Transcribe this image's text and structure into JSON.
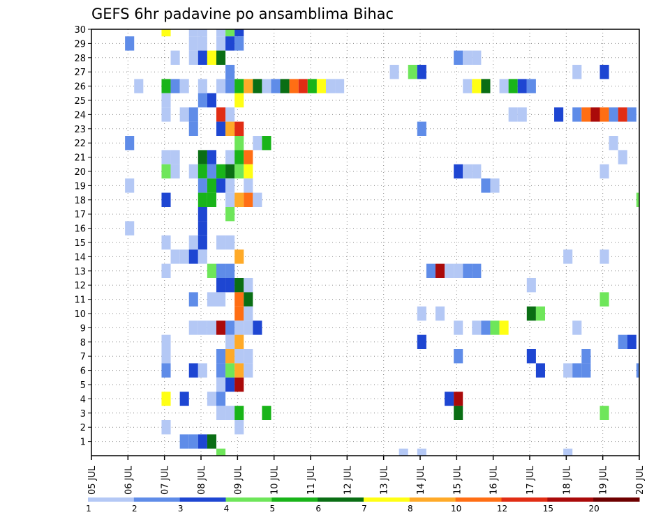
{
  "chart_data": {
    "type": "heatmap",
    "title": "GEFS 6hr padavine po ansamblima Bihac",
    "xlabel": "",
    "ylabel": "",
    "x_tick_labels": [
      "05 JUL",
      "06 JUL",
      "07 JUL",
      "08 JUL",
      "09 JUL",
      "10 JUL",
      "11 JUL",
      "12 JUL",
      "13 JUL",
      "14 JUL",
      "15 JUL",
      "16 JUL",
      "17 JUL",
      "18 JUL",
      "19 JUL",
      "20 JUL"
    ],
    "x_range_days": [
      0,
      15
    ],
    "x_step_days": 0.25,
    "y_tick_labels": [
      "1",
      "2",
      "3",
      "4",
      "5",
      "6",
      "7",
      "8",
      "9",
      "10",
      "11",
      "12",
      "13",
      "14",
      "15",
      "16",
      "17",
      "18",
      "19",
      "20",
      "21",
      "22",
      "23",
      "24",
      "25",
      "26",
      "27",
      "28",
      "29",
      "30"
    ],
    "ylim": [
      0,
      30
    ],
    "grid": true,
    "colorbar": {
      "labels": [
        "1",
        "2",
        "3",
        "4",
        "5",
        "6",
        "7",
        "8",
        "10",
        "12",
        "15",
        "20"
      ],
      "colors": [
        "#b4c8f5",
        "#5f8ce8",
        "#1e46d2",
        "#6ee65a",
        "#19b419",
        "#0a6e14",
        "#ffff14",
        "#ffaa28",
        "#ff6e14",
        "#e12d14",
        "#aa0a0a",
        "#6e0000"
      ]
    },
    "cells_note": "each cell: [day offset from 05 JUL (0.25 = 6 h), ensemble member, colour class index 0-11]",
    "cells": [
      [
        1.92,
        30,
        6
      ],
      [
        2.67,
        30,
        0
      ],
      [
        2.92,
        30,
        0
      ],
      [
        3.42,
        30,
        0
      ],
      [
        3.67,
        30,
        3
      ],
      [
        3.92,
        30,
        2
      ],
      [
        0.92,
        29,
        1
      ],
      [
        2.67,
        29,
        0
      ],
      [
        2.92,
        29,
        0
      ],
      [
        3.42,
        29,
        0
      ],
      [
        3.67,
        29,
        2
      ],
      [
        3.92,
        29,
        1
      ],
      [
        2.17,
        28,
        0
      ],
      [
        2.67,
        28,
        0
      ],
      [
        2.92,
        28,
        2
      ],
      [
        3.17,
        28,
        6
      ],
      [
        3.42,
        28,
        5
      ],
      [
        9.92,
        28,
        1
      ],
      [
        10.17,
        28,
        0
      ],
      [
        10.42,
        28,
        0
      ],
      [
        3.67,
        27,
        1
      ],
      [
        8.17,
        27,
        0
      ],
      [
        8.67,
        27,
        3
      ],
      [
        8.92,
        27,
        2
      ],
      [
        13.17,
        27,
        0
      ],
      [
        13.92,
        27,
        2
      ],
      [
        1.17,
        26,
        0
      ],
      [
        1.92,
        26,
        4
      ],
      [
        2.17,
        26,
        1
      ],
      [
        2.42,
        26,
        0
      ],
      [
        2.92,
        26,
        0
      ],
      [
        3.42,
        26,
        0
      ],
      [
        3.67,
        26,
        1
      ],
      [
        3.92,
        26,
        4
      ],
      [
        4.17,
        26,
        7
      ],
      [
        4.42,
        26,
        5
      ],
      [
        4.67,
        26,
        0
      ],
      [
        4.92,
        26,
        1
      ],
      [
        5.17,
        26,
        5
      ],
      [
        5.42,
        26,
        8
      ],
      [
        5.67,
        26,
        9
      ],
      [
        5.92,
        26,
        4
      ],
      [
        6.17,
        26,
        6
      ],
      [
        6.42,
        26,
        0
      ],
      [
        6.67,
        26,
        0
      ],
      [
        10.17,
        26,
        0
      ],
      [
        10.42,
        26,
        6
      ],
      [
        10.67,
        26,
        5
      ],
      [
        11.17,
        26,
        0
      ],
      [
        11.42,
        26,
        4
      ],
      [
        11.67,
        26,
        2
      ],
      [
        11.92,
        26,
        1
      ],
      [
        1.92,
        25,
        0
      ],
      [
        2.92,
        25,
        1
      ],
      [
        3.17,
        25,
        2
      ],
      [
        3.92,
        25,
        6
      ],
      [
        1.92,
        24,
        0
      ],
      [
        2.42,
        24,
        0
      ],
      [
        2.67,
        24,
        1
      ],
      [
        3.42,
        24,
        9
      ],
      [
        3.67,
        24,
        0
      ],
      [
        11.42,
        24,
        0
      ],
      [
        11.67,
        24,
        0
      ],
      [
        12.67,
        24,
        2
      ],
      [
        13.17,
        24,
        1
      ],
      [
        13.42,
        24,
        8
      ],
      [
        13.67,
        24,
        10
      ],
      [
        13.92,
        24,
        8
      ],
      [
        14.17,
        24,
        1
      ],
      [
        14.42,
        24,
        9
      ],
      [
        14.67,
        24,
        1
      ],
      [
        2.67,
        23,
        1
      ],
      [
        3.42,
        23,
        2
      ],
      [
        3.67,
        23,
        7
      ],
      [
        3.92,
        23,
        9
      ],
      [
        8.92,
        23,
        1
      ],
      [
        0.92,
        22,
        1
      ],
      [
        3.92,
        22,
        3
      ],
      [
        4.42,
        22,
        0
      ],
      [
        4.67,
        22,
        4
      ],
      [
        14.17,
        22,
        0
      ],
      [
        1.92,
        21,
        0
      ],
      [
        2.17,
        21,
        0
      ],
      [
        2.92,
        21,
        5
      ],
      [
        3.17,
        21,
        2
      ],
      [
        3.67,
        21,
        0
      ],
      [
        3.92,
        21,
        4
      ],
      [
        4.17,
        21,
        8
      ],
      [
        14.42,
        21,
        0
      ],
      [
        1.92,
        20,
        3
      ],
      [
        2.17,
        20,
        0
      ],
      [
        2.67,
        20,
        0
      ],
      [
        2.92,
        20,
        4
      ],
      [
        3.17,
        20,
        1
      ],
      [
        3.42,
        20,
        4
      ],
      [
        3.67,
        20,
        5
      ],
      [
        3.92,
        20,
        3
      ],
      [
        4.17,
        20,
        6
      ],
      [
        9.92,
        20,
        2
      ],
      [
        10.17,
        20,
        0
      ],
      [
        10.42,
        20,
        0
      ],
      [
        13.92,
        20,
        0
      ],
      [
        0.92,
        19,
        0
      ],
      [
        2.92,
        19,
        1
      ],
      [
        3.17,
        19,
        4
      ],
      [
        3.42,
        19,
        2
      ],
      [
        3.67,
        19,
        0
      ],
      [
        4.17,
        19,
        0
      ],
      [
        10.67,
        19,
        1
      ],
      [
        10.92,
        19,
        0
      ],
      [
        1.92,
        18,
        2
      ],
      [
        2.92,
        18,
        4
      ],
      [
        3.17,
        18,
        4
      ],
      [
        3.67,
        18,
        0
      ],
      [
        3.92,
        18,
        7
      ],
      [
        4.17,
        18,
        8
      ],
      [
        4.42,
        18,
        0
      ],
      [
        14.92,
        18,
        3
      ],
      [
        2.92,
        17,
        2
      ],
      [
        3.67,
        17,
        3
      ],
      [
        0.92,
        16,
        0
      ],
      [
        2.92,
        16,
        2
      ],
      [
        1.92,
        15,
        0
      ],
      [
        2.67,
        15,
        0
      ],
      [
        2.92,
        15,
        2
      ],
      [
        3.42,
        15,
        0
      ],
      [
        3.67,
        15,
        0
      ],
      [
        2.17,
        14,
        0
      ],
      [
        2.42,
        14,
        0
      ],
      [
        2.67,
        14,
        2
      ],
      [
        2.92,
        14,
        0
      ],
      [
        3.92,
        14,
        7
      ],
      [
        12.92,
        14,
        0
      ],
      [
        13.92,
        14,
        0
      ],
      [
        1.92,
        13,
        0
      ],
      [
        3.17,
        13,
        3
      ],
      [
        3.42,
        13,
        1
      ],
      [
        3.67,
        13,
        1
      ],
      [
        9.17,
        13,
        1
      ],
      [
        9.42,
        13,
        10
      ],
      [
        9.67,
        13,
        0
      ],
      [
        9.92,
        13,
        0
      ],
      [
        10.17,
        13,
        1
      ],
      [
        10.42,
        13,
        1
      ],
      [
        3.42,
        12,
        2
      ],
      [
        3.67,
        12,
        2
      ],
      [
        3.92,
        12,
        5
      ],
      [
        4.17,
        12,
        0
      ],
      [
        11.92,
        12,
        0
      ],
      [
        2.67,
        11,
        1
      ],
      [
        3.17,
        11,
        0
      ],
      [
        3.42,
        11,
        0
      ],
      [
        3.92,
        11,
        8
      ],
      [
        4.17,
        11,
        5
      ],
      [
        13.92,
        11,
        3
      ],
      [
        3.92,
        10,
        8
      ],
      [
        4.17,
        10,
        0
      ],
      [
        8.92,
        10,
        0
      ],
      [
        9.42,
        10,
        0
      ],
      [
        11.92,
        10,
        5
      ],
      [
        12.17,
        10,
        3
      ],
      [
        2.67,
        9,
        0
      ],
      [
        2.92,
        9,
        0
      ],
      [
        3.17,
        9,
        0
      ],
      [
        3.42,
        9,
        10
      ],
      [
        3.67,
        9,
        1
      ],
      [
        3.92,
        9,
        0
      ],
      [
        4.17,
        9,
        0
      ],
      [
        4.42,
        9,
        2
      ],
      [
        9.92,
        9,
        0
      ],
      [
        10.42,
        9,
        0
      ],
      [
        10.67,
        9,
        1
      ],
      [
        10.92,
        9,
        3
      ],
      [
        11.17,
        9,
        6
      ],
      [
        13.17,
        9,
        0
      ],
      [
        1.92,
        8,
        0
      ],
      [
        3.67,
        8,
        0
      ],
      [
        3.92,
        8,
        7
      ],
      [
        8.92,
        8,
        2
      ],
      [
        14.42,
        8,
        1
      ],
      [
        14.67,
        8,
        2
      ],
      [
        1.92,
        7,
        0
      ],
      [
        3.42,
        7,
        1
      ],
      [
        3.67,
        7,
        7
      ],
      [
        3.92,
        7,
        0
      ],
      [
        4.17,
        7,
        0
      ],
      [
        9.92,
        7,
        1
      ],
      [
        11.92,
        7,
        2
      ],
      [
        13.42,
        7,
        1
      ],
      [
        1.92,
        6,
        1
      ],
      [
        2.67,
        6,
        2
      ],
      [
        2.92,
        6,
        0
      ],
      [
        3.42,
        6,
        1
      ],
      [
        3.67,
        6,
        3
      ],
      [
        3.92,
        6,
        7
      ],
      [
        4.17,
        6,
        0
      ],
      [
        12.17,
        6,
        2
      ],
      [
        12.92,
        6,
        0
      ],
      [
        13.17,
        6,
        1
      ],
      [
        13.42,
        6,
        1
      ],
      [
        14.92,
        6,
        1
      ],
      [
        3.42,
        5,
        0
      ],
      [
        3.67,
        5,
        2
      ],
      [
        3.92,
        5,
        10
      ],
      [
        1.92,
        4,
        6
      ],
      [
        2.42,
        4,
        2
      ],
      [
        3.17,
        4,
        0
      ],
      [
        3.42,
        4,
        1
      ],
      [
        9.67,
        4,
        2
      ],
      [
        9.92,
        4,
        10
      ],
      [
        3.42,
        3,
        0
      ],
      [
        3.67,
        3,
        0
      ],
      [
        3.92,
        3,
        4
      ],
      [
        4.67,
        3,
        4
      ],
      [
        9.92,
        3,
        5
      ],
      [
        13.92,
        3,
        3
      ],
      [
        1.92,
        2,
        0
      ],
      [
        3.92,
        2,
        0
      ],
      [
        2.42,
        1,
        1
      ],
      [
        2.67,
        1,
        1
      ],
      [
        2.92,
        1,
        2
      ],
      [
        3.17,
        1,
        5
      ],
      [
        3.42,
        0,
        3
      ],
      [
        8.42,
        0,
        0
      ],
      [
        8.92,
        0,
        0
      ],
      [
        12.92,
        0,
        0
      ]
    ]
  }
}
